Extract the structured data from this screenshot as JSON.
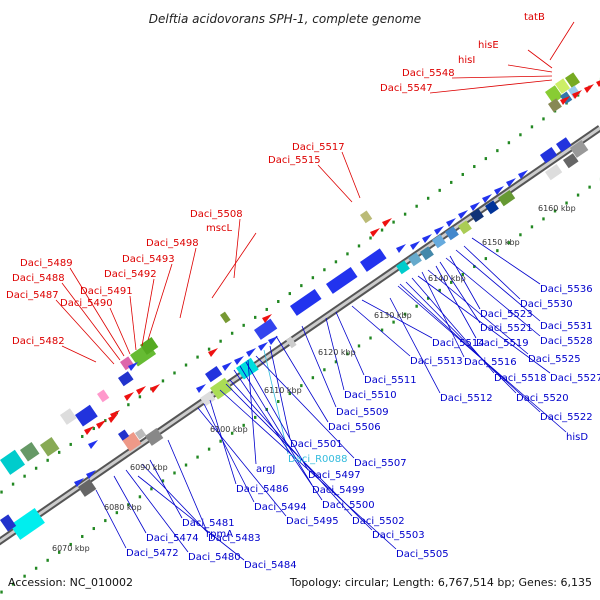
{
  "title": "Delftia acidovorans SPH-1, complete genome",
  "footer": {
    "accession": "Accession: NC_010002",
    "summary": "Topology: circular; Length: 6,767,514 bp; Genes: 6,135"
  },
  "colors": {
    "forward_label": "#dd0000",
    "reverse_label": "#0000cc",
    "special_label": "#33bbdd",
    "backbone": "#888888",
    "tick": "#228822"
  },
  "ticks": [
    "6070 kbp",
    "6080 kbp",
    "6090 kbp",
    "6100 kbp",
    "6110 kbp",
    "6120 kbp",
    "6130 kbp",
    "6140 kbp",
    "6150 kbp",
    "6160 kbp"
  ],
  "forward_genes": [
    "tatB",
    "hisE",
    "hisI",
    "Daci_5548",
    "Daci_5547",
    "Daci_5517",
    "Daci_5515",
    "Daci_5508",
    "mscL",
    "Daci_5498",
    "Daci_5493",
    "Daci_5492",
    "Daci_5491",
    "Daci_5490",
    "Daci_5489",
    "Daci_5488",
    "Daci_5487",
    "Daci_5482"
  ],
  "reverse_genes": [
    "Daci_5536",
    "Daci_5530",
    "Daci_5531",
    "Daci_5523",
    "Daci_5528",
    "Daci_5521",
    "Daci_5519",
    "Daci_5525",
    "Daci_5516",
    "Daci_5527",
    "Daci_5518",
    "Daci_5520",
    "Daci_5522",
    "hisD",
    "Daci_5514",
    "Daci_5513",
    "Daci_5511",
    "Daci_5510",
    "Daci_5512",
    "Daci_5509",
    "Daci_5506",
    "Daci_5501",
    "Daci_R0088",
    "Daci_5507",
    "argJ",
    "Daci_5497",
    "Daci_5499",
    "Daci_5500",
    "Daci_5486",
    "Daci_5494",
    "Daci_5495",
    "rpmA",
    "Daci_5502",
    "Daci_5503",
    "Daci_5481",
    "Daci_5483",
    "Daci_5505",
    "Daci_5474",
    "Daci_5480",
    "Daci_5472",
    "Daci_5484"
  ]
}
